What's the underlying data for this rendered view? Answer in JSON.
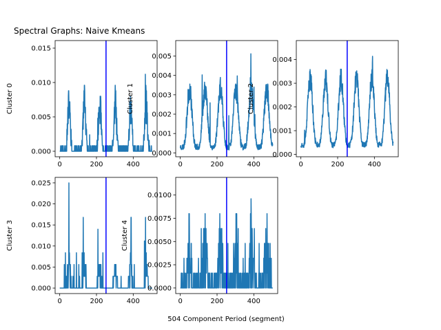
{
  "figure": {
    "title": "Spectral Graphs: Naive Kmeans",
    "xlabel": "504 Component Period (segment)",
    "line_color": "#1f77b4",
    "marker_color": "#0000ff"
  },
  "chart_data": [
    {
      "type": "line",
      "ylabel": "Cluster 0",
      "xlim": [
        -25,
        530
      ],
      "ylim": [
        -0.0008,
        0.0161
      ],
      "xticks": [
        0,
        200,
        400
      ],
      "yticks": [
        0.0,
        0.005,
        0.01,
        0.015
      ],
      "ytick_labels": [
        "0.000",
        "0.005",
        "0.010",
        "0.015"
      ],
      "vline_x": 252,
      "n_points": 504,
      "period": 84,
      "baseline": 0.0,
      "amplitude": 0.0068,
      "sharpness": 7,
      "noise": 0.0022,
      "spike_rate": 0.02,
      "spike_max": 0.013,
      "quantum": 0.0008,
      "seed": 11
    },
    {
      "type": "line",
      "ylabel": "Cluster 1",
      "xlim": [
        -25,
        530
      ],
      "ylim": [
        -0.0002,
        0.0058
      ],
      "xticks": [
        0,
        200,
        400
      ],
      "yticks": [
        0.0,
        0.001,
        0.002,
        0.003,
        0.004,
        0.005
      ],
      "ytick_labels": [
        "0.000",
        "0.001",
        "0.002",
        "0.003",
        "0.004",
        "0.005"
      ],
      "vline_x": 252,
      "n_points": 504,
      "period": 84,
      "baseline": 0.0003,
      "amplitude": 0.003,
      "sharpness": 2,
      "noise": 0.00045,
      "spike_rate": 0.012,
      "spike_max": 0.0053,
      "quantum": 0,
      "seed": 23
    },
    {
      "type": "line",
      "ylabel": "Cluster 2",
      "xlim": [
        -25,
        530
      ],
      "ylim": [
        -0.0001,
        0.0048
      ],
      "xticks": [
        0,
        200,
        400
      ],
      "yticks": [
        0.0,
        0.001,
        0.002,
        0.003,
        0.004
      ],
      "ytick_labels": [
        "0.000",
        "0.001",
        "0.002",
        "0.003",
        "0.004"
      ],
      "vline_x": 252,
      "n_points": 504,
      "period": 84,
      "baseline": 0.0004,
      "amplitude": 0.0028,
      "sharpness": 2,
      "noise": 0.00035,
      "spike_rate": 0.008,
      "spike_max": 0.0046,
      "quantum": 0,
      "seed": 37
    },
    {
      "type": "line",
      "ylabel": "Cluster 3",
      "xlim": [
        -25,
        530
      ],
      "ylim": [
        -0.0013,
        0.0263
      ],
      "xticks": [
        0,
        200,
        400
      ],
      "yticks": [
        0.0,
        0.005,
        0.01,
        0.015,
        0.02,
        0.025
      ],
      "ytick_labels": [
        "0.000",
        "0.005",
        "0.010",
        "0.015",
        "0.020",
        "0.025"
      ],
      "vline_x": 252,
      "n_points": 504,
      "period": 84,
      "baseline": 0.0,
      "amplitude": 0.005,
      "sharpness": 8,
      "noise": 0.0028,
      "spike_rate": 0.03,
      "spike_max": 0.025,
      "quantum": 0.0028,
      "seed": 51
    },
    {
      "type": "line",
      "ylabel": "Cluster 4",
      "xlim": [
        -25,
        530
      ],
      "ylim": [
        -0.0006,
        0.0119
      ],
      "xticks": [
        0,
        200,
        400
      ],
      "yticks": [
        0.0,
        0.0025,
        0.005,
        0.0075,
        0.01
      ],
      "ytick_labels": [
        "0.0000",
        "0.0025",
        "0.0050",
        "0.0075",
        "0.0100"
      ],
      "vline_x": 252,
      "n_points": 504,
      "period": 84,
      "baseline": 0.0,
      "amplitude": 0.0035,
      "sharpness": 3,
      "noise": 0.0035,
      "spike_rate": 0.05,
      "spike_max": 0.0113,
      "quantum": 0.0016,
      "seed": 73
    }
  ]
}
